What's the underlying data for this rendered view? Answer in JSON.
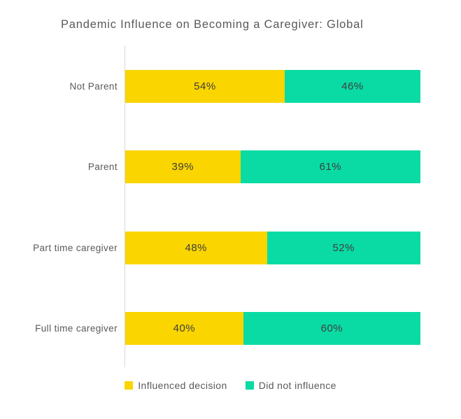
{
  "chart_data": {
    "type": "bar",
    "orientation": "horizontal",
    "stacked": true,
    "title": "Pandemic Influence on Becoming a Caregiver: Global",
    "categories": [
      "Not Parent",
      "Parent",
      "Part time caregiver",
      "Full time caregiver"
    ],
    "series": [
      {
        "name": "Influenced decision",
        "color": "#FAD500",
        "values": [
          54,
          39,
          48,
          40
        ]
      },
      {
        "name": "Did not influence",
        "color": "#0ADBA4",
        "values": [
          46,
          61,
          52,
          60
        ]
      }
    ],
    "value_suffix": "%",
    "xlim": [
      0,
      100
    ],
    "grid": false,
    "legend_position": "bottom"
  },
  "colors": {
    "background": "#FFFFFF",
    "axis_line": "#D9D9D9",
    "title_text": "#595959",
    "category_text": "#595959",
    "value_text": "#3E3E3E",
    "legend_text": "#595959"
  }
}
